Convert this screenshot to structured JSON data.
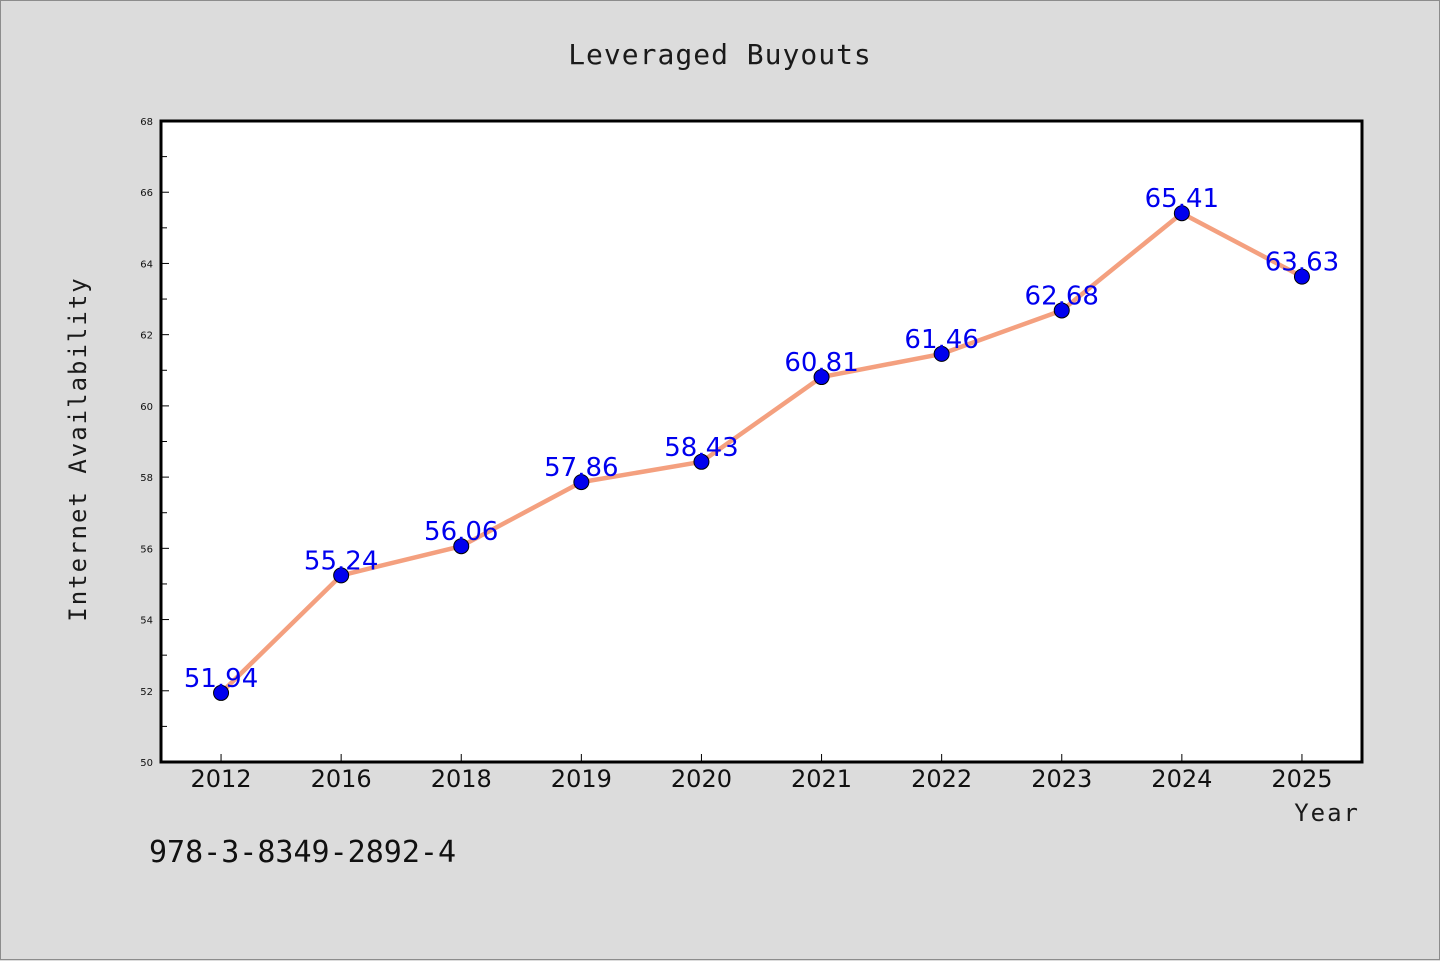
{
  "chart_data": {
    "type": "line",
    "title": "Leveraged Buyouts",
    "xlabel": "Year",
    "ylabel": "Internet Availability",
    "categories": [
      "2012",
      "2016",
      "2018",
      "2019",
      "2020",
      "2021",
      "2022",
      "2023",
      "2024",
      "2025"
    ],
    "series": [
      {
        "values": [
          51.94,
          55.24,
          56.06,
          57.86,
          58.43,
          60.81,
          61.46,
          62.68,
          65.41,
          63.63
        ]
      }
    ],
    "data_labels": [
      "51.94",
      "55.24",
      "56.06",
      "57.86",
      "58.43",
      "60.81",
      "61.46",
      "62.68",
      "65.41",
      "63.63"
    ],
    "ylim": [
      50,
      68
    ],
    "y_ticks": [
      "50",
      "52",
      "54",
      "56",
      "58",
      "60",
      "62",
      "64",
      "66",
      "68"
    ],
    "grid": false,
    "legend": "none",
    "colors": {
      "line": "#f4a07f",
      "marker": "#0000ee",
      "data_label": "#0000ee",
      "plot_background": "#ffffff",
      "figure_background": "#dcdcdc"
    }
  },
  "footnote": "978-3-8349-2892-4"
}
